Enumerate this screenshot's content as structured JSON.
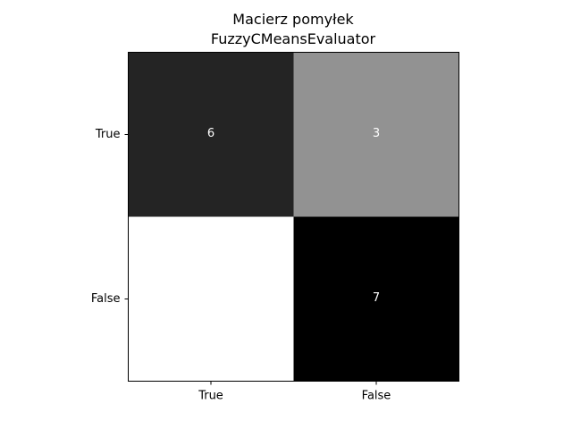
{
  "chart_data": {
    "type": "heatmap",
    "title": [
      "Macierz pomyłek",
      "FuzzyCMeansEvaluator"
    ],
    "xlabel": "",
    "ylabel": "",
    "x_categories": [
      "True",
      "False"
    ],
    "y_categories": [
      "True",
      "False"
    ],
    "values": [
      [
        6,
        3
      ],
      [
        0,
        7
      ]
    ],
    "colormap": "gray_r",
    "vmin": 0,
    "vmax": 7,
    "colorbar": false,
    "grid": false,
    "cell_text_color": "#ffffff",
    "cell_text_color_light_cells": "#ffffff"
  }
}
